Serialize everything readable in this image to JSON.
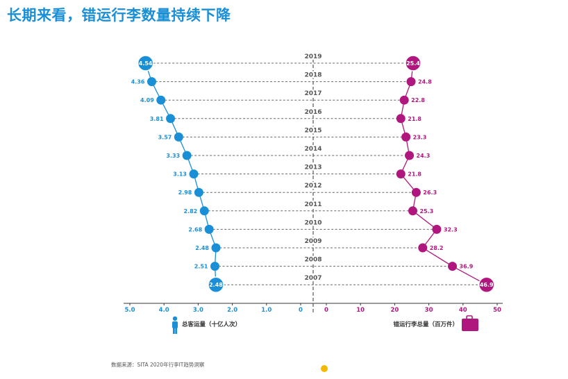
{
  "title": "长期来看，错运行李数量持续下降",
  "source": "数据来源：SITA 2020年行李IT趋势洞察",
  "colors": {
    "title": "#1a8fd6",
    "passengers": "#1a8fd6",
    "bags": "#b0177e",
    "axis": "#555555",
    "dashed": "#666666"
  },
  "chart_data": {
    "type": "line",
    "years": [
      "2019",
      "2018",
      "2017",
      "2016",
      "2015",
      "2014",
      "2013",
      "2012",
      "2011",
      "2010",
      "2009",
      "2008",
      "2007"
    ],
    "series": [
      {
        "name": "总客运量（十亿人次）",
        "values": [
          4.54,
          4.36,
          4.09,
          3.81,
          3.57,
          3.33,
          3.13,
          2.98,
          2.82,
          2.68,
          2.48,
          2.51,
          2.48
        ],
        "labels": [
          "4.54",
          "4.36",
          "4.09",
          "3.81",
          "3.57",
          "3.33",
          "3.13",
          "2.98",
          "2.82",
          "2.68",
          "2.48",
          "2.51",
          "2.48"
        ],
        "axis_ticks": [
          "5.0",
          "4.0",
          "3.0",
          "2.0",
          "1.0",
          "0"
        ],
        "axis_tick_values": [
          5,
          4,
          3,
          2,
          1,
          0
        ],
        "xlim": [
          5,
          0
        ],
        "icon": "person-icon"
      },
      {
        "name": "错运行李总量（百万件）",
        "values": [
          25.4,
          24.8,
          22.8,
          21.8,
          23.3,
          24.3,
          21.8,
          26.3,
          25.3,
          32.3,
          28.2,
          36.9,
          46.9
        ],
        "labels": [
          "25.4",
          "24.8",
          "22.8",
          "21.8",
          "23.3",
          "24.3",
          "21.8",
          "26.3",
          "25.3",
          "32.3",
          "28.2",
          "36.9",
          "46.9"
        ],
        "axis_ticks": [
          "0",
          "10",
          "20",
          "30",
          "40",
          "50"
        ],
        "axis_tick_values": [
          0,
          10,
          20,
          30,
          40,
          50
        ],
        "xlim": [
          0,
          50
        ],
        "icon": "suitcase-icon"
      }
    ],
    "highlighted_points": [
      "2019",
      "2007"
    ],
    "grid": "dashed horizontal per year"
  }
}
